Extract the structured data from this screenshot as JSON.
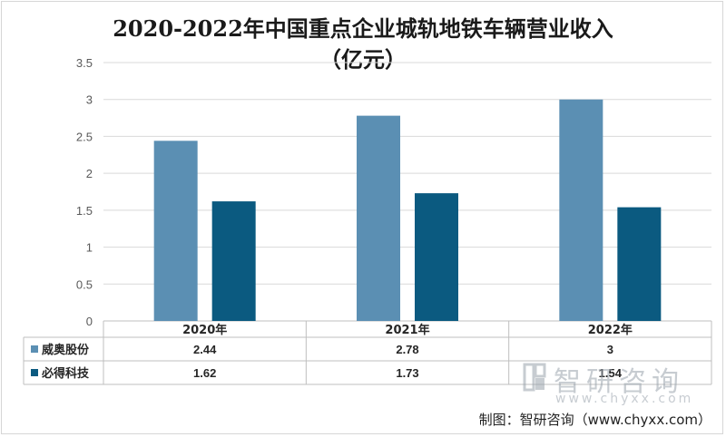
{
  "chart_data": {
    "type": "bar",
    "title_line1": "2020-2022年中国重点企业城轨地铁车辆营业收入",
    "title_line2": "（亿元）",
    "categories": [
      "2020年",
      "2021年",
      "2022年"
    ],
    "series": [
      {
        "name": "威奥股份",
        "values": [
          2.44,
          2.78,
          3
        ],
        "labels": [
          "2.44",
          "2.78",
          "3"
        ],
        "color": "#5b8fb3"
      },
      {
        "name": "必得科技",
        "values": [
          1.62,
          1.73,
          1.54
        ],
        "labels": [
          "1.62",
          "1.73",
          "1.54"
        ],
        "color": "#0b5a80"
      }
    ],
    "ylim": [
      0,
      3.5
    ],
    "yticks": [
      "0",
      "0.5",
      "1",
      "1.5",
      "2",
      "2.5",
      "3",
      "3.5"
    ],
    "grid": true,
    "legend": "data-table"
  },
  "credit": "制图：智研咨询（www.chyxx.com）",
  "watermark": {
    "name": "智研咨询",
    "url": "www.chyxx.com"
  }
}
